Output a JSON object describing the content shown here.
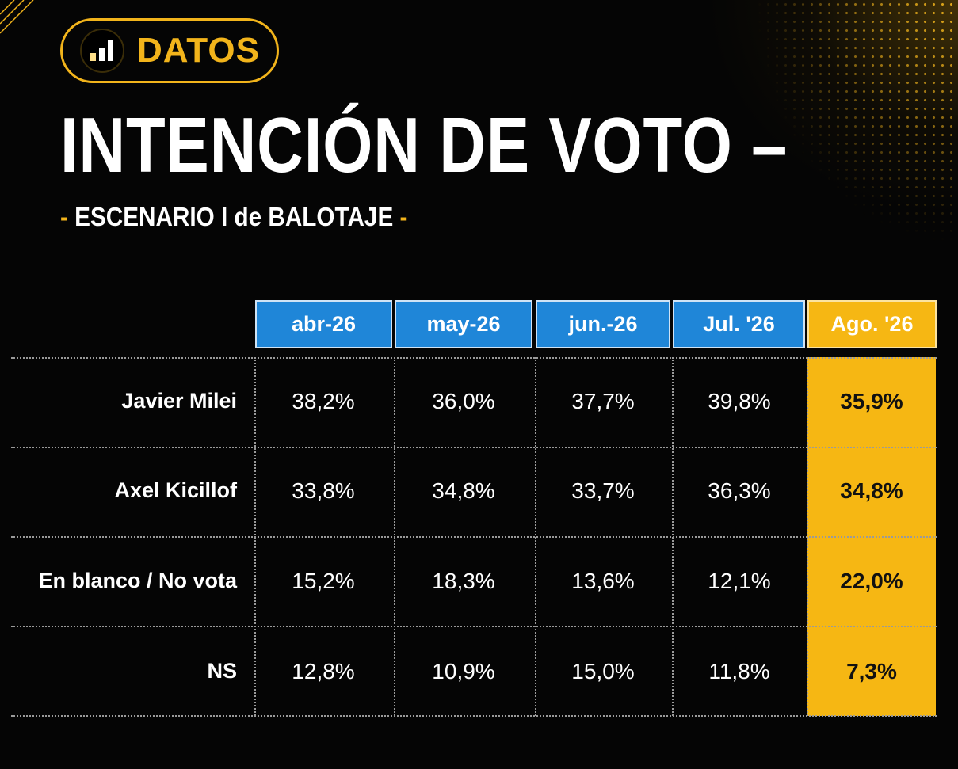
{
  "badge": {
    "label": "DATOS",
    "icon": "bar-chart-icon"
  },
  "title": "INTENCIÓN DE VOTO –",
  "subtitle": {
    "left_dash": "-",
    "text": "ESCENARIO I de BALOTAJE",
    "right_dash": "-"
  },
  "colors": {
    "accent": "#f6b713",
    "header_blue": "#1f86d8",
    "background": "#050505"
  },
  "chart_data": {
    "type": "table",
    "columns": [
      "abr-26",
      "may-26",
      "jun.-26",
      "Jul. '26",
      "Ago. '26"
    ],
    "highlighted_column": "Ago. '26",
    "rows": [
      {
        "label": "Javier Milei",
        "values": [
          "38,2%",
          "36,0%",
          "37,7%",
          "39,8%",
          "35,9%"
        ]
      },
      {
        "label": "Axel Kicillof",
        "values": [
          "33,8%",
          "34,8%",
          "33,7%",
          "36,3%",
          "34,8%"
        ]
      },
      {
        "label": "En blanco / No vota",
        "values": [
          "15,2%",
          "18,3%",
          "13,6%",
          "12,1%",
          "22,0%"
        ]
      },
      {
        "label": "NS",
        "values": [
          "12,8%",
          "10,9%",
          "15,0%",
          "11,8%",
          "7,3%"
        ]
      }
    ]
  }
}
